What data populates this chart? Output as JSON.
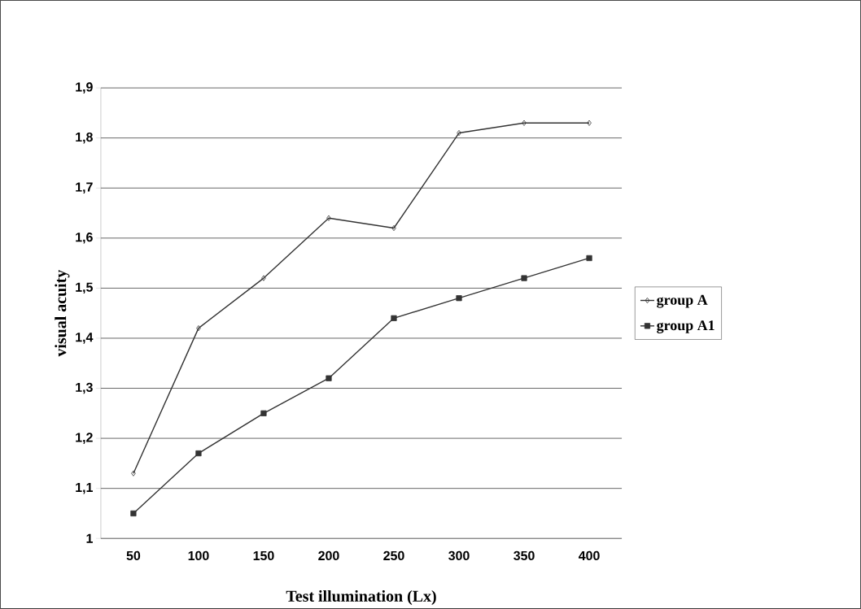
{
  "chart_data": {
    "type": "line",
    "xlabel": "Test illumination  (Lx)",
    "ylabel": "visual acuity",
    "categories": [
      "50",
      "100",
      "150",
      "200",
      "250",
      "300",
      "350",
      "400"
    ],
    "series": [
      {
        "name": "group A",
        "color": "#333333",
        "marker": "diamond",
        "values": [
          1.13,
          1.42,
          1.52,
          1.64,
          1.62,
          1.81,
          1.83,
          1.83
        ]
      },
      {
        "name": "group A1",
        "color": "#333333",
        "marker": "square",
        "values": [
          1.05,
          1.17,
          1.25,
          1.32,
          1.44,
          1.48,
          1.52,
          1.56
        ]
      }
    ],
    "ylim": [
      1,
      1.9
    ],
    "yticks": [
      {
        "value": 1,
        "label": "1"
      },
      {
        "value": 1.1,
        "label": "1,1"
      },
      {
        "value": 1.2,
        "label": "1,2"
      },
      {
        "value": 1.3,
        "label": "1,3"
      },
      {
        "value": 1.4,
        "label": "1,4"
      },
      {
        "value": 1.5,
        "label": "1,5"
      },
      {
        "value": 1.6,
        "label": "1,6"
      },
      {
        "value": 1.7,
        "label": "1,7"
      },
      {
        "value": 1.8,
        "label": "1,8"
      },
      {
        "value": 1.9,
        "label": "1,9"
      }
    ],
    "grid": "y",
    "legend": "right",
    "line_style": "solid"
  }
}
